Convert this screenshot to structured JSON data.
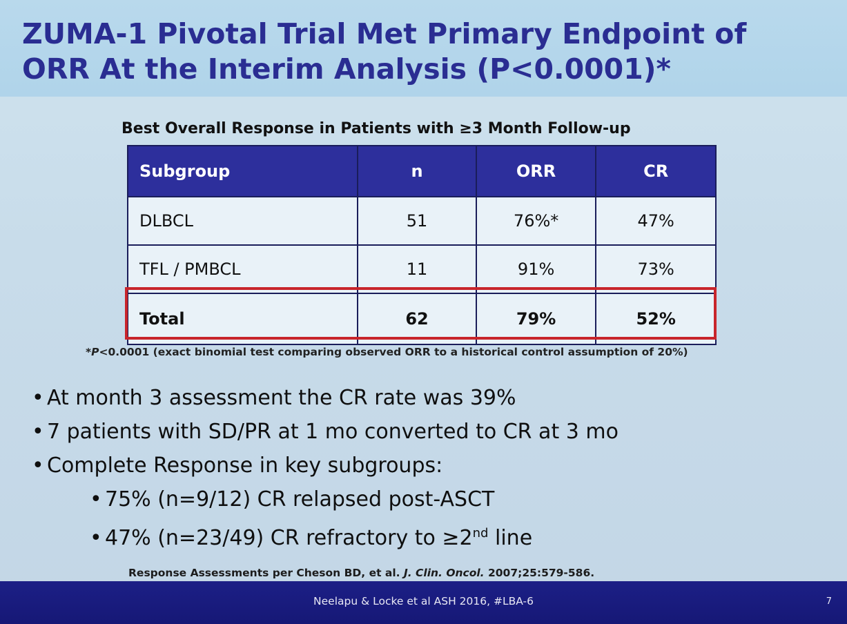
{
  "slide": {
    "title_line1": "ZUMA-1 Pivotal Trial Met Primary Endpoint of",
    "title_line2": "ORR At the Interim Analysis (P<0.0001)*"
  },
  "table": {
    "title": "Best Overall Response in Patients with ≥3 Month Follow-up",
    "headers": [
      "Subgroup",
      "n",
      "ORR",
      "CR"
    ],
    "rows": [
      [
        "DLBCL",
        "51",
        "76%*",
        "47%"
      ],
      [
        "TFL / PMBCL",
        "11",
        "91%",
        "73%"
      ],
      [
        "Total",
        "62",
        "79%",
        "52%"
      ]
    ]
  },
  "footnote": {
    "prefix": "*",
    "p_italic": "P",
    "rest": "<0.0001 (exact binomial test comparing observed ORR to a historical control assumption of 20%)"
  },
  "bullets": {
    "b1": "At month 3 assessment the CR rate was 39%",
    "b2": "7 patients with SD/PR at 1 mo converted to CR at 3 mo",
    "b3": "Complete Response in key subgroups:",
    "s1": "75% (n=9/12) CR relapsed post-ASCT",
    "s2_pre": "47% (n=23/49) CR refractory to ≥2",
    "s2_sup": "nd",
    "s2_post": " line",
    "bullet_char": "•"
  },
  "reference": {
    "prefix": "Response Assessments per Cheson BD, et al. ",
    "journal": "J. Clin. Oncol.",
    "suffix": " 2007;25:579-586."
  },
  "footer": {
    "text": "Neelapu & Locke et al ASH 2016, #LBA-6",
    "page": "7"
  },
  "colors": {
    "title": "#2a2d92",
    "header_bg": "#2d2f9c",
    "highlight_border": "#c8252b",
    "footer_bg": "#1c1f86"
  }
}
